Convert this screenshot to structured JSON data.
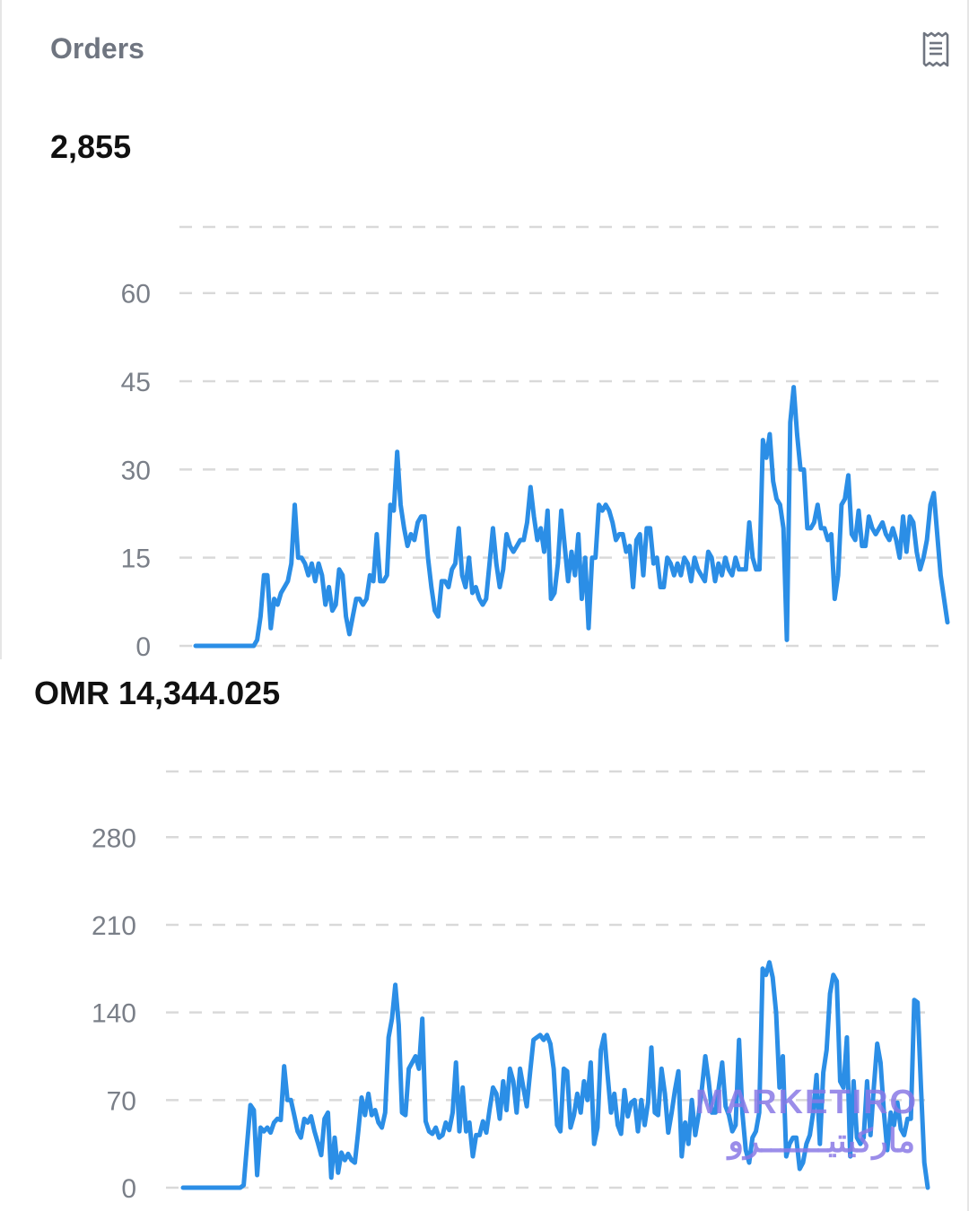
{
  "orders_card": {
    "title": "Orders",
    "icon": "receipt-icon",
    "total": "2,855"
  },
  "revenue_card": {
    "total": "OMR 14,344.025"
  },
  "watermark": {
    "latin": "MARKETIRO",
    "arabic": "ماركيتيـــــــرو"
  },
  "colors": {
    "line": "#2b8ee6",
    "grid": "#d9d9d9",
    "tick": "#7a7f88"
  },
  "chart_data": [
    {
      "type": "line",
      "yticks": [
        0,
        15,
        30,
        45,
        60
      ],
      "ylim": [
        0,
        60
      ],
      "grid": true,
      "series": [
        {
          "values": [
            0,
            0,
            0,
            0,
            0,
            0,
            0,
            0,
            0,
            0,
            0,
            0,
            0,
            0,
            0,
            0,
            0,
            0,
            1,
            5,
            12,
            12,
            3,
            8,
            7,
            9,
            10,
            11,
            14,
            24,
            15,
            15,
            14,
            12,
            14,
            11,
            14,
            12,
            7,
            10,
            6,
            7,
            13,
            12,
            5,
            2,
            5,
            8,
            8,
            7,
            8,
            12,
            11,
            19,
            11,
            11,
            12,
            24,
            23,
            33,
            24,
            20,
            17,
            19,
            18,
            21,
            22,
            22,
            15,
            10,
            6,
            5,
            11,
            11,
            10,
            13,
            14,
            20,
            12,
            10,
            15,
            9,
            10,
            8,
            7,
            8,
            14,
            20,
            14,
            10,
            13,
            19,
            17,
            16,
            17,
            18,
            18,
            21,
            27,
            22,
            18,
            20,
            16,
            23,
            8,
            9,
            14,
            23,
            17,
            11,
            16,
            12,
            19,
            8,
            15,
            3,
            15,
            15,
            24,
            23,
            24,
            23,
            21,
            18,
            19,
            19,
            16,
            17,
            10,
            18,
            19,
            12,
            20,
            20,
            14,
            15,
            10,
            10,
            15,
            14,
            12,
            14,
            12,
            15,
            14,
            11,
            15,
            13,
            12,
            11,
            16,
            15,
            11,
            14,
            12,
            15,
            13,
            12,
            15,
            13,
            13,
            13,
            21,
            15,
            13,
            13,
            35,
            32,
            36,
            28,
            25,
            24,
            20,
            1,
            38,
            44,
            36,
            30,
            30,
            20,
            20,
            21,
            24,
            20,
            20,
            18,
            19,
            8,
            12,
            24,
            25,
            29,
            19,
            18,
            23,
            17,
            17,
            22,
            20,
            19,
            20,
            21,
            19,
            18,
            20,
            18,
            15,
            22,
            16,
            22,
            21,
            16,
            13,
            15,
            18,
            24,
            26,
            19,
            12,
            8,
            4
          ]
        }
      ]
    },
    {
      "type": "line",
      "yticks": [
        0,
        70,
        140,
        210,
        280
      ],
      "ylim": [
        0,
        280
      ],
      "grid": true,
      "series": [
        {
          "values": [
            0,
            0,
            0,
            0,
            0,
            0,
            0,
            0,
            0,
            0,
            0,
            0,
            0,
            0,
            0,
            0,
            0,
            0,
            2,
            35,
            66,
            62,
            10,
            48,
            45,
            48,
            44,
            52,
            55,
            54,
            97,
            70,
            70,
            58,
            45,
            40,
            55,
            52,
            57,
            45,
            36,
            26,
            55,
            60,
            8,
            40,
            12,
            28,
            22,
            27,
            22,
            20,
            45,
            72,
            58,
            75,
            58,
            62,
            52,
            48,
            60,
            120,
            135,
            162,
            130,
            60,
            58,
            95,
            100,
            105,
            95,
            135,
            53,
            45,
            43,
            48,
            40,
            42,
            52,
            46,
            60,
            100,
            45,
            80,
            45,
            52,
            25,
            42,
            42,
            53,
            44,
            63,
            80,
            75,
            55,
            85,
            62,
            95,
            85,
            60,
            95,
            80,
            65,
            92,
            118,
            120,
            122,
            118,
            122,
            115,
            95,
            50,
            45,
            95,
            93,
            48,
            58,
            75,
            60,
            85,
            70,
            100,
            35,
            48,
            110,
            122,
            90,
            60,
            75,
            50,
            43,
            78,
            57,
            68,
            70,
            45,
            70,
            50,
            68,
            112,
            60,
            58,
            95,
            75,
            44,
            60,
            78,
            93,
            25,
            52,
            35,
            70,
            42,
            58,
            80,
            105,
            85,
            60,
            60,
            80,
            100,
            65,
            58,
            45,
            50,
            118,
            60,
            30,
            20,
            40,
            45,
            60,
            175,
            170,
            180,
            168,
            140,
            80,
            105,
            25,
            35,
            40,
            40,
            15,
            20,
            35,
            42,
            60,
            90,
            35,
            92,
            110,
            155,
            170,
            165,
            85,
            80,
            120,
            25,
            85,
            40,
            35,
            40,
            85,
            42,
            80,
            115,
            100,
            60,
            30,
            60,
            50,
            68,
            47,
            42,
            55,
            55,
            150,
            148,
            80,
            20,
            0
          ]
        }
      ]
    }
  ]
}
